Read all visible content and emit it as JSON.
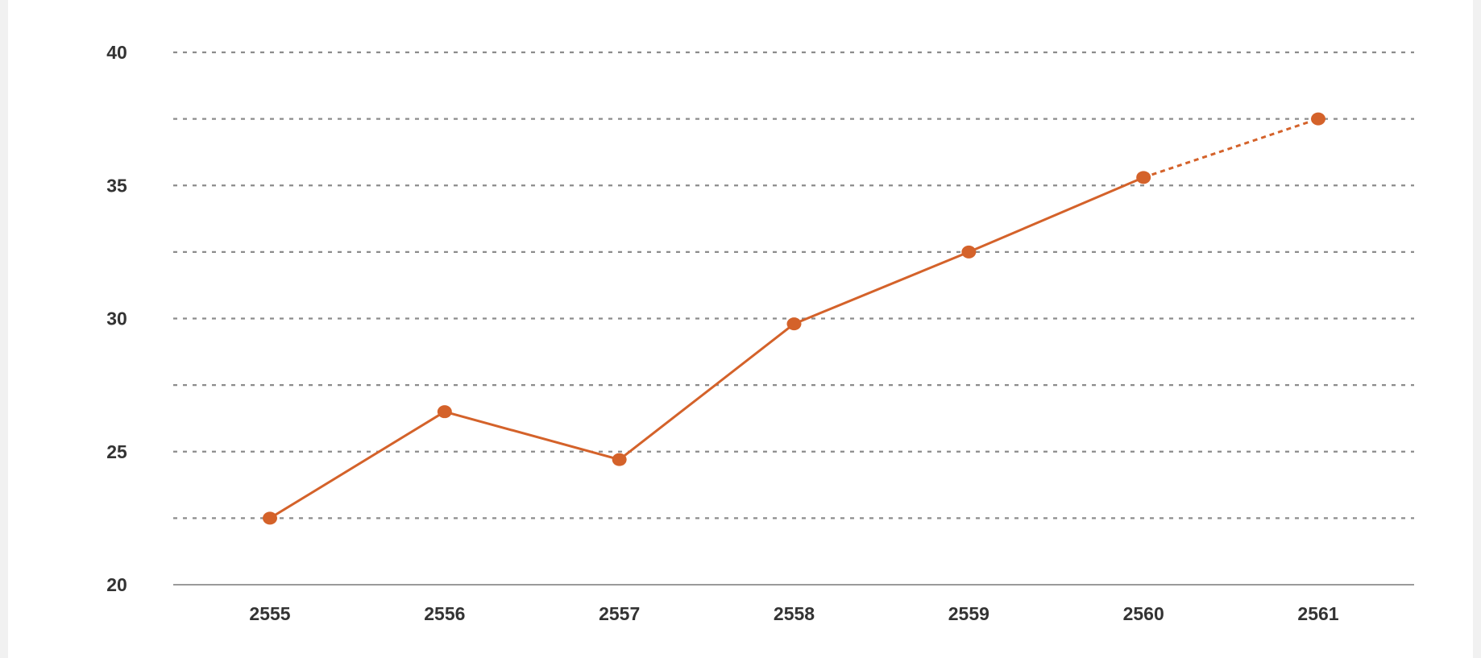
{
  "chart_data": {
    "type": "line",
    "categories": [
      "2555",
      "2556",
      "2557",
      "2558",
      "2559",
      "2560",
      "2561"
    ],
    "series": [
      {
        "values": [
          22.5,
          26.5,
          24.7,
          29.8,
          32.5,
          35.3,
          37.5
        ],
        "projected_from_index": 5
      }
    ],
    "y_ticks": [
      "20",
      "25",
      "30",
      "35",
      "40"
    ],
    "ylim": [
      20,
      40
    ],
    "gridline_step": 2.5,
    "grid": true,
    "legend": "none",
    "colors": {
      "line": "#d4622a",
      "grid": "#8c8c8c",
      "axis": "#9a9a9a",
      "tick_text": "#333333"
    }
  }
}
